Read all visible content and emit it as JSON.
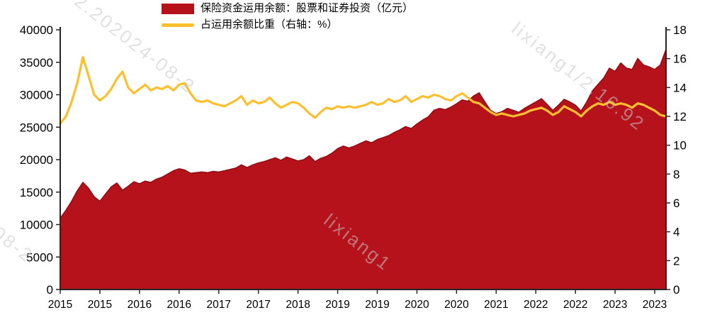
{
  "legend": {
    "items": [
      {
        "label": "保险资金运用余额：股票和证券投资（亿元）",
        "swatch": "area",
        "color": "#b5121b"
      },
      {
        "label": "占运用余额比重（右轴：%）",
        "swatch": "line",
        "color": "#fcc02e"
      }
    ]
  },
  "watermarks": [
    "2.202024-08-2",
    "lixiang1/2.16.92",
    "lixiang1",
    "4-08-2"
  ],
  "chart_data": {
    "type": "combo",
    "subtype": "area+line",
    "x_start": "2015-01",
    "x_frequency": "monthly",
    "grid": false,
    "legend_position": "top",
    "series": [
      {
        "name": "保险资金运用余额：股票和证券投资（亿元）",
        "type": "area",
        "axis": "left",
        "color": "#b5121b",
        "values": [
          11000,
          12200,
          13600,
          15200,
          16500,
          15600,
          14300,
          13600,
          14700,
          15800,
          16400,
          15300,
          15900,
          16600,
          16300,
          16700,
          16500,
          17000,
          17300,
          17800,
          18300,
          18600,
          18400,
          17900,
          18000,
          18100,
          18000,
          18200,
          18100,
          18300,
          18500,
          18700,
          19200,
          18800,
          19200,
          19500,
          19700,
          20000,
          20300,
          19900,
          20400,
          20100,
          19800,
          20000,
          20600,
          19700,
          20200,
          20500,
          21000,
          21700,
          22100,
          21800,
          22100,
          22500,
          22900,
          22600,
          23100,
          23400,
          23700,
          24200,
          24600,
          25100,
          24800,
          25500,
          26100,
          26600,
          27600,
          27900,
          27700,
          28100,
          28600,
          29200,
          29000,
          29800,
          30300,
          28900,
          27600,
          27100,
          27400,
          27900,
          27600,
          27300,
          27900,
          28400,
          28900,
          29400,
          28500,
          27600,
          28400,
          29300,
          28900,
          28400,
          27500,
          28900,
          30600,
          31600,
          32600,
          34100,
          33600,
          34900,
          34100,
          33900,
          35600,
          34600,
          34300,
          33900,
          34600,
          37000
        ]
      },
      {
        "name": "占运用余额比重（右轴：%）",
        "type": "line",
        "axis": "right",
        "color": "#fcc02e",
        "values": [
          11.5,
          12.0,
          13.0,
          14.3,
          16.1,
          14.8,
          13.5,
          13.1,
          13.4,
          13.9,
          14.6,
          15.1,
          14.0,
          13.6,
          13.9,
          14.2,
          13.8,
          14.0,
          13.9,
          14.1,
          13.8,
          14.2,
          14.3,
          13.6,
          13.1,
          13.0,
          13.1,
          12.9,
          12.8,
          12.7,
          12.9,
          13.1,
          13.4,
          12.8,
          13.1,
          12.9,
          13.0,
          13.3,
          12.9,
          12.6,
          12.8,
          13.0,
          12.9,
          12.6,
          12.2,
          11.9,
          12.3,
          12.6,
          12.5,
          12.7,
          12.6,
          12.7,
          12.6,
          12.7,
          12.8,
          13.0,
          12.8,
          12.9,
          13.2,
          13.0,
          13.1,
          13.4,
          13.0,
          13.2,
          13.4,
          13.3,
          13.5,
          13.4,
          13.2,
          13.1,
          13.4,
          13.6,
          13.3,
          13.0,
          12.9,
          12.6,
          12.3,
          12.1,
          12.2,
          12.1,
          12.0,
          12.1,
          12.2,
          12.4,
          12.5,
          12.6,
          12.4,
          12.1,
          12.3,
          12.7,
          12.5,
          12.3,
          12.0,
          12.4,
          12.7,
          12.9,
          12.8,
          13.0,
          12.8,
          12.9,
          12.8,
          12.6,
          12.9,
          12.8,
          12.6,
          12.4,
          12.1,
          12.0
        ]
      }
    ],
    "left_axis": {
      "min": 0,
      "max": 40000,
      "step": 5000,
      "tick_labels": [
        "0",
        "5000",
        "10000",
        "15000",
        "20000",
        "25000",
        "30000",
        "35000",
        "40000"
      ]
    },
    "right_axis": {
      "min": 0,
      "max": 18,
      "step": 2,
      "tick_labels": [
        "0",
        "2",
        "4",
        "6",
        "8",
        "10",
        "12",
        "14",
        "16",
        "18"
      ]
    },
    "x_axis": {
      "tick_indices": [
        0,
        7,
        14,
        21,
        28,
        35,
        42,
        49,
        56,
        63,
        70,
        77,
        84,
        91,
        98,
        105
      ],
      "tick_labels": [
        "2015",
        "2015",
        "2016",
        "2016",
        "2017",
        "2017",
        "2018",
        "2019",
        "2019",
        "2020",
        "2020",
        "2021",
        "2022",
        "2022",
        "2023",
        "2023"
      ]
    }
  }
}
